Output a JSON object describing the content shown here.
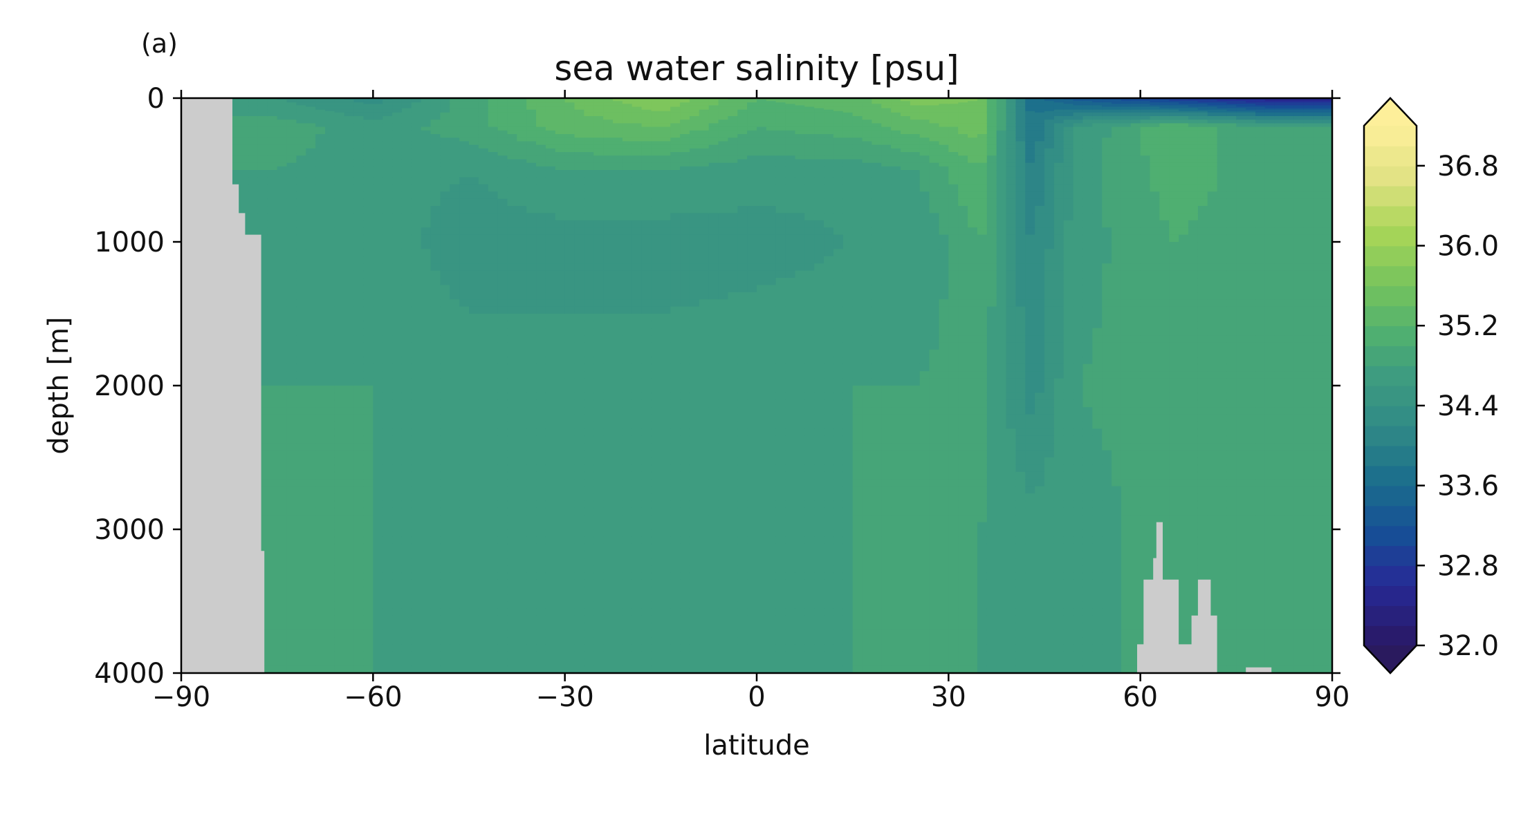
{
  "panel_label": "(a)",
  "chart_data": {
    "type": "heatmap",
    "title": "sea water salinity [psu]",
    "xlabel": "latitude",
    "ylabel": "depth [m]",
    "xlim": [
      -90,
      90
    ],
    "ylim": [
      4000,
      0
    ],
    "x_ticks": [
      -90,
      -60,
      -30,
      0,
      30,
      60,
      90
    ],
    "x_tick_labels": [
      "−90",
      "−60",
      "−30",
      "0",
      "30",
      "60",
      "90"
    ],
    "y_ticks": [
      0,
      1000,
      2000,
      3000,
      4000
    ],
    "y_tick_labels": [
      "0",
      "1000",
      "2000",
      "3000",
      "4000"
    ],
    "grid": false,
    "land_color": "#cccccc",
    "colorbar": {
      "min": 32.0,
      "max": 37.2,
      "step": 0.2,
      "extend": "both",
      "ticks": [
        32.0,
        32.8,
        33.6,
        34.4,
        35.2,
        36.0,
        36.8
      ],
      "tick_labels": [
        "32.0",
        "32.8",
        "33.6",
        "34.4",
        "35.2",
        "36.0",
        "36.8"
      ],
      "colormap": "haline",
      "under_color": "#2a1a5e",
      "over_color": "#fdef9a"
    },
    "salinity_profiles": [
      {
        "lat": -75,
        "depths": [
          0,
          200,
          500,
          1000,
          2000,
          3000,
          4000
        ],
        "values": [
          34.6,
          34.9,
          34.8,
          34.7,
          34.8,
          34.8,
          34.8
        ]
      },
      {
        "lat": -60,
        "depths": [
          0,
          200,
          500,
          1000,
          2000,
          3000,
          4000
        ],
        "values": [
          34.3,
          34.7,
          34.7,
          34.7,
          34.8,
          34.8,
          34.8
        ]
      },
      {
        "lat": -45,
        "depths": [
          0,
          200,
          500,
          1000,
          2000,
          3000,
          4000
        ],
        "values": [
          34.9,
          34.9,
          34.6,
          34.5,
          34.7,
          34.7,
          34.7
        ]
      },
      {
        "lat": -30,
        "depths": [
          0,
          200,
          500,
          1000,
          2000,
          3000,
          4000
        ],
        "values": [
          35.4,
          35.3,
          34.8,
          34.5,
          34.7,
          34.7,
          34.7
        ]
      },
      {
        "lat": -15,
        "depths": [
          0,
          200,
          500,
          1000,
          2000,
          3000,
          4000
        ],
        "values": [
          35.8,
          35.4,
          34.8,
          34.5,
          34.7,
          34.7,
          34.7
        ]
      },
      {
        "lat": 0,
        "depths": [
          0,
          200,
          500,
          1000,
          2000,
          3000,
          4000
        ],
        "values": [
          35.2,
          35.0,
          34.7,
          34.5,
          34.8,
          34.7,
          34.7
        ]
      },
      {
        "lat": 15,
        "depths": [
          0,
          200,
          500,
          1000,
          2000,
          3000,
          4000
        ],
        "values": [
          35.3,
          35.1,
          34.7,
          34.6,
          34.8,
          34.8,
          34.8
        ]
      },
      {
        "lat": 25,
        "depths": [
          0,
          200,
          500,
          1000,
          2000,
          3000,
          4000
        ],
        "values": [
          35.7,
          35.3,
          34.8,
          34.6,
          34.8,
          34.8,
          34.8
        ]
      },
      {
        "lat": 35,
        "depths": [
          0,
          200,
          500,
          1000,
          2000,
          3000,
          4000
        ],
        "values": [
          35.6,
          35.5,
          35.2,
          35.0,
          34.9,
          34.8,
          34.8
        ]
      },
      {
        "lat": 43,
        "depths": [
          0,
          200,
          500,
          1000,
          2000,
          3000,
          4000
        ],
        "values": [
          33.7,
          33.8,
          34.0,
          34.2,
          34.3,
          34.7,
          34.7
        ]
      },
      {
        "lat": 50,
        "depths": [
          0,
          200,
          500,
          1000,
          2000,
          3000,
          4000
        ],
        "values": [
          33.3,
          34.6,
          34.7,
          34.7,
          34.8,
          34.7,
          34.7
        ]
      },
      {
        "lat": 65,
        "depths": [
          0,
          200,
          500,
          1000,
          2000,
          3000,
          4000
        ],
        "values": [
          32.8,
          35.2,
          35.1,
          35.0,
          34.9,
          34.9,
          34.9
        ]
      },
      {
        "lat": 80,
        "depths": [
          0,
          200,
          500,
          1000,
          2000,
          3000,
          4000
        ],
        "values": [
          32.4,
          34.8,
          34.9,
          34.9,
          34.9,
          34.9,
          34.9
        ]
      },
      {
        "lat": 90,
        "depths": [
          0,
          200,
          500,
          1000,
          2000,
          3000,
          4000
        ],
        "values": [
          32.4,
          34.8,
          34.9,
          34.9,
          34.9,
          34.9,
          34.9
        ]
      }
    ]
  }
}
